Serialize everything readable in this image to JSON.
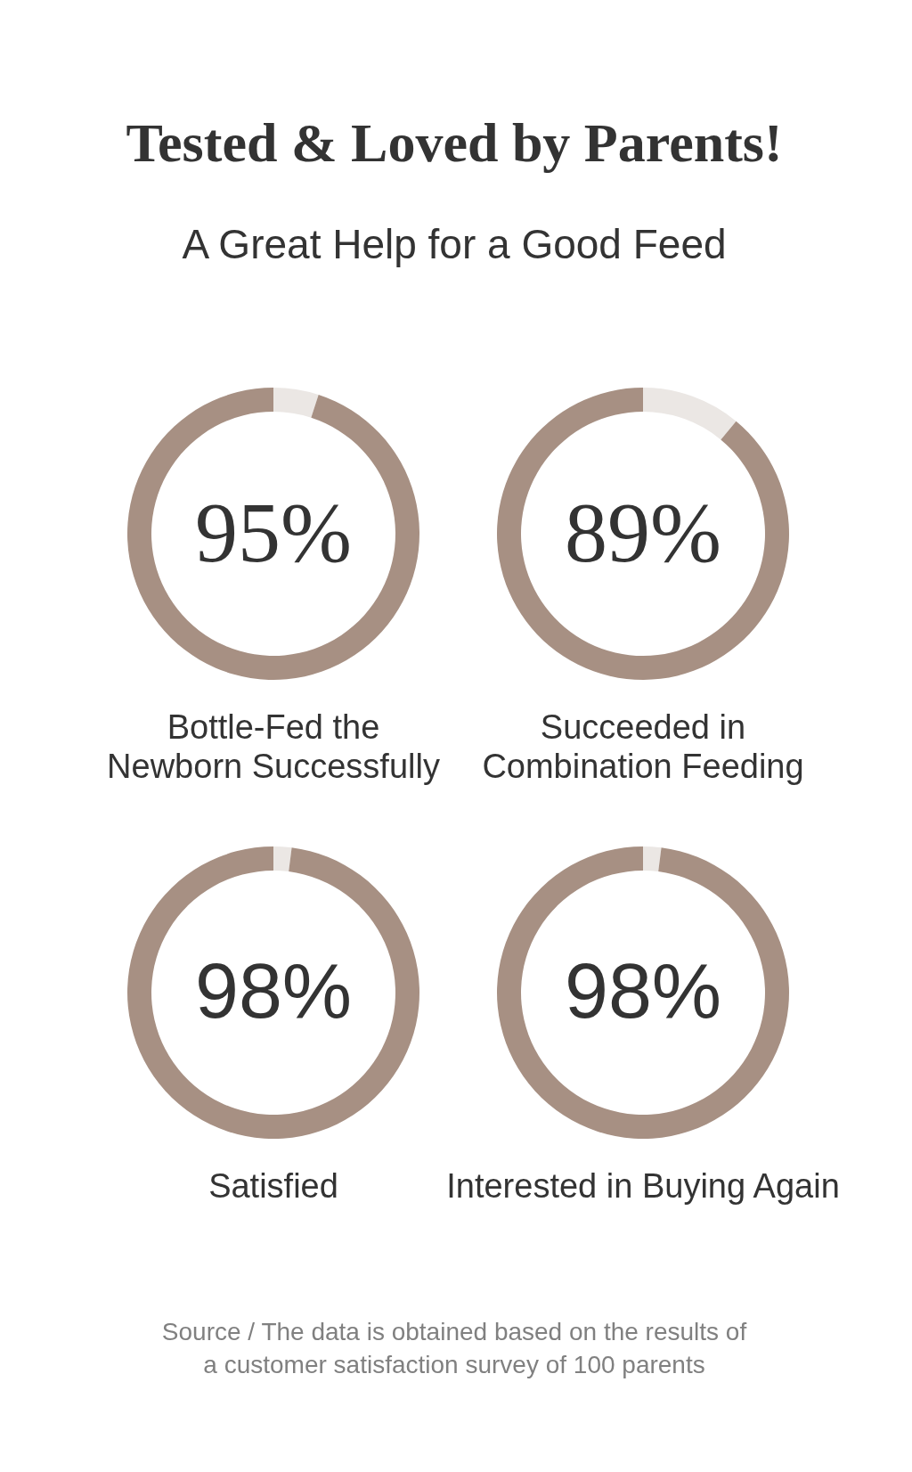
{
  "chart_data": [
    {
      "type": "other",
      "title": "Tested & Loved by Parents!",
      "subtitle": "A Great Help for a Good Feed"
    },
    {
      "type": "donut",
      "title": "Bottle-Fed the Newborn Successfully",
      "categories": [
        null,
        null
      ],
      "values": [
        5,
        95
      ],
      "colors": [
        "#ebe7e4",
        "#a79083"
      ],
      "value_labels": [
        null,
        "95%"
      ]
    },
    {
      "type": "donut",
      "title": "Succeeded in Combination Feeding",
      "categories": [
        null,
        null
      ],
      "values": [
        11,
        89
      ],
      "colors": [
        "#ebe7e4",
        "#a79083"
      ],
      "value_labels": [
        null,
        "89%"
      ]
    },
    {
      "type": "donut",
      "title": "Satisfied",
      "categories": [
        null,
        null
      ],
      "values": [
        2,
        98
      ],
      "colors": [
        "#ebe7e4",
        "#a79083"
      ],
      "value_labels": [
        null,
        "98%"
      ]
    },
    {
      "type": "donut",
      "title": "Interested in Buying Again",
      "categories": [
        null,
        null
      ],
      "values": [
        2,
        98
      ],
      "colors": [
        "#ebe7e4",
        "#a79083"
      ],
      "value_labels": [
        null,
        "98%"
      ]
    },
    {
      "type": "other",
      "annotations": [
        "Source / The data is obtained based on the results of a customer satisfaction survey of 100 parents"
      ]
    }
  ]
}
